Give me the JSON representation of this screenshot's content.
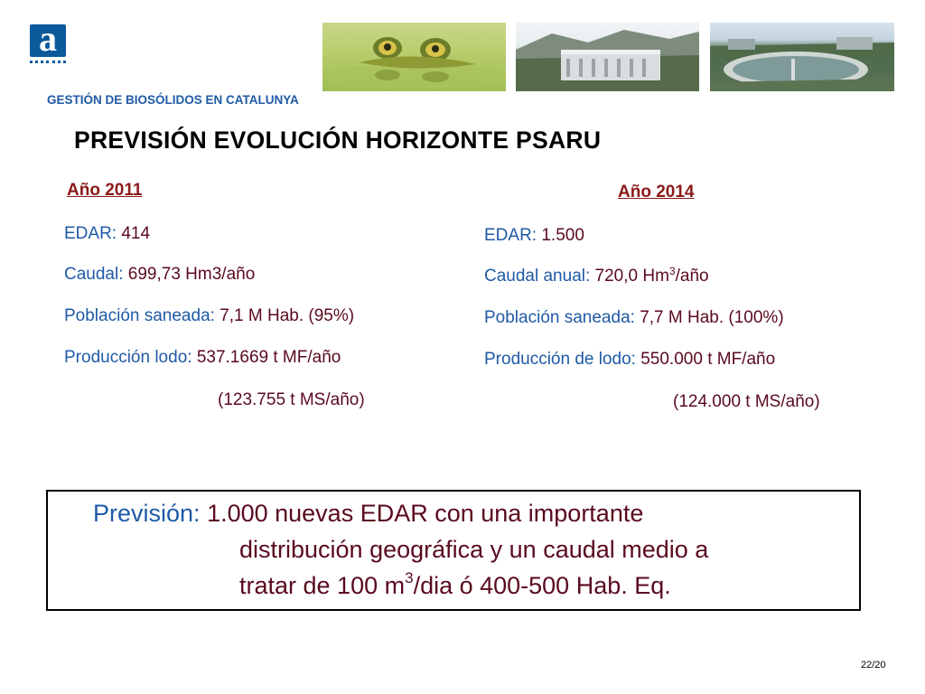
{
  "header": {
    "logo_letter": "a",
    "section_title": "GESTIÓN DE BIOSÓLIDOS EN CATALUNYA",
    "main_title": "PREVISIÓN EVOLUCIÓN HORIZONTE PSARU"
  },
  "colors": {
    "blue": "#1f5aa6",
    "maroon": "#5a0a1e",
    "title_red": "#8b1a1a"
  },
  "col2011": {
    "title": "Año 2011",
    "edar_label": "EDAR: ",
    "edar_value": "414",
    "caudal_label": "Caudal: ",
    "caudal_value": "699,73 Hm3/año",
    "poblacion_label": "Población saneada: ",
    "poblacion_value": "7,1 M Hab. (95%)",
    "lodo_label": "Producción lodo: ",
    "lodo_value": "537.1669 t MF/año",
    "lodo_ms": "(123.755 t MS/año)"
  },
  "col2014": {
    "title": "Año 2014",
    "edar_label": "EDAR: ",
    "edar_value": "1.500",
    "caudal_label": "Caudal anual: ",
    "caudal_value_pre": "720,0 Hm",
    "caudal_sup": "3",
    "caudal_value_post": "/año",
    "poblacion_label": "Población saneada: ",
    "poblacion_value": "7,7 M Hab. (100%)",
    "lodo_label": "Producción de lodo: ",
    "lodo_value": "550.000 t MF/año",
    "lodo_ms": "(124.000 t MS/año)"
  },
  "prevision": {
    "label": "Previsión: ",
    "line1": "1.000 nuevas EDAR con una importante",
    "line2": "distribución geográfica y un caudal medio a",
    "line3_pre": "tratar de 100 m",
    "line3_sup": "3",
    "line3_post": "/dia ó 400-500  Hab. Eq."
  },
  "footer": {
    "page": "22/20"
  }
}
